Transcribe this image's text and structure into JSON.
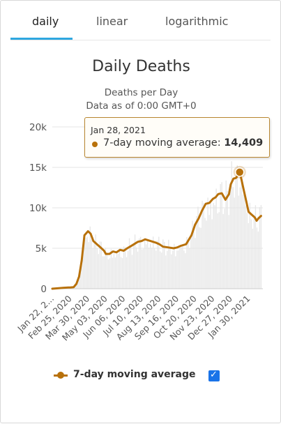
{
  "tabs": [
    {
      "label": "daily",
      "active": true
    },
    {
      "label": "linear",
      "active": false
    },
    {
      "label": "logarithmic",
      "active": false
    }
  ],
  "tooltip": {
    "date": "Jan 28, 2021",
    "series_label": "7-day moving average:",
    "value_label": "14,409"
  },
  "legend": {
    "label": "7-day moving average",
    "checked": true,
    "checkbox_glyph": "✓"
  },
  "colors": {
    "series": "#b8710b",
    "bars": "#e4e4e4",
    "tab_active": "#2ea7e0",
    "checkbox": "#1a73e8"
  },
  "chart_data": {
    "type": "line",
    "title": "Daily Deaths",
    "subtitle": [
      "Deaths per Day",
      "Data as of 0:00 GMT+0"
    ],
    "xlabel": "",
    "ylabel": "",
    "ylim": [
      0,
      20000
    ],
    "y_ticks": [
      0,
      5000,
      10000,
      15000,
      20000
    ],
    "y_tick_labels": [
      "0",
      "5k",
      "10k",
      "15k",
      "20k"
    ],
    "x_tick_labels": [
      "Jan 22, 2...",
      "Feb 25, 2020",
      "Mar 30, 2020",
      "May 03, 2020",
      "Jun 06, 2020",
      "Jul 10, 2020",
      "Aug 13, 2020",
      "Sep 16, 2020",
      "Oct 20, 2020",
      "Nov 23, 2020",
      "Dec 27, 2020",
      "Jan 30, 2021"
    ],
    "x_tick_index": [
      0,
      1,
      2,
      3,
      4,
      5,
      6,
      7,
      8,
      9,
      10,
      11
    ],
    "grid": true,
    "legend_position": "bottom",
    "series": [
      {
        "name": "7-day moving average",
        "x_index": [
          0,
          0.3,
          0.6,
          0.9,
          1.0,
          1.2,
          1.35,
          1.5,
          1.65,
          1.8,
          2.0,
          2.15,
          2.3,
          2.5,
          2.7,
          2.9,
          3.0,
          3.2,
          3.4,
          3.6,
          3.8,
          4.0,
          4.2,
          4.5,
          4.8,
          5.0,
          5.2,
          5.5,
          5.8,
          6.0,
          6.2,
          6.5,
          6.8,
          7.0,
          7.2,
          7.5,
          7.8,
          8.0,
          8.2,
          8.4,
          8.6,
          8.8,
          9.0,
          9.15,
          9.3,
          9.5,
          9.7,
          9.9,
          10.0,
          10.15,
          10.3,
          10.5,
          10.6,
          10.7,
          10.85,
          11.0,
          11.1,
          11.25,
          11.35,
          11.45,
          11.55,
          11.7
        ],
        "values": [
          0,
          50,
          100,
          150,
          150,
          200,
          600,
          1500,
          3500,
          6600,
          7100,
          6800,
          5900,
          5500,
          5100,
          4700,
          4300,
          4300,
          4600,
          4500,
          4800,
          4700,
          5000,
          5400,
          5800,
          5900,
          6100,
          5900,
          5700,
          5500,
          5200,
          5100,
          5000,
          5100,
          5300,
          5500,
          6600,
          7900,
          8700,
          9700,
          10500,
          10600,
          11100,
          11300,
          11700,
          11800,
          11000,
          11700,
          12900,
          13600,
          13700,
          14409,
          13500,
          12500,
          11000,
          9500,
          9300,
          9000,
          8800,
          8400,
          8700,
          9000
        ]
      }
    ],
    "highlight": {
      "x_index": 10.5,
      "value": 14409
    }
  }
}
